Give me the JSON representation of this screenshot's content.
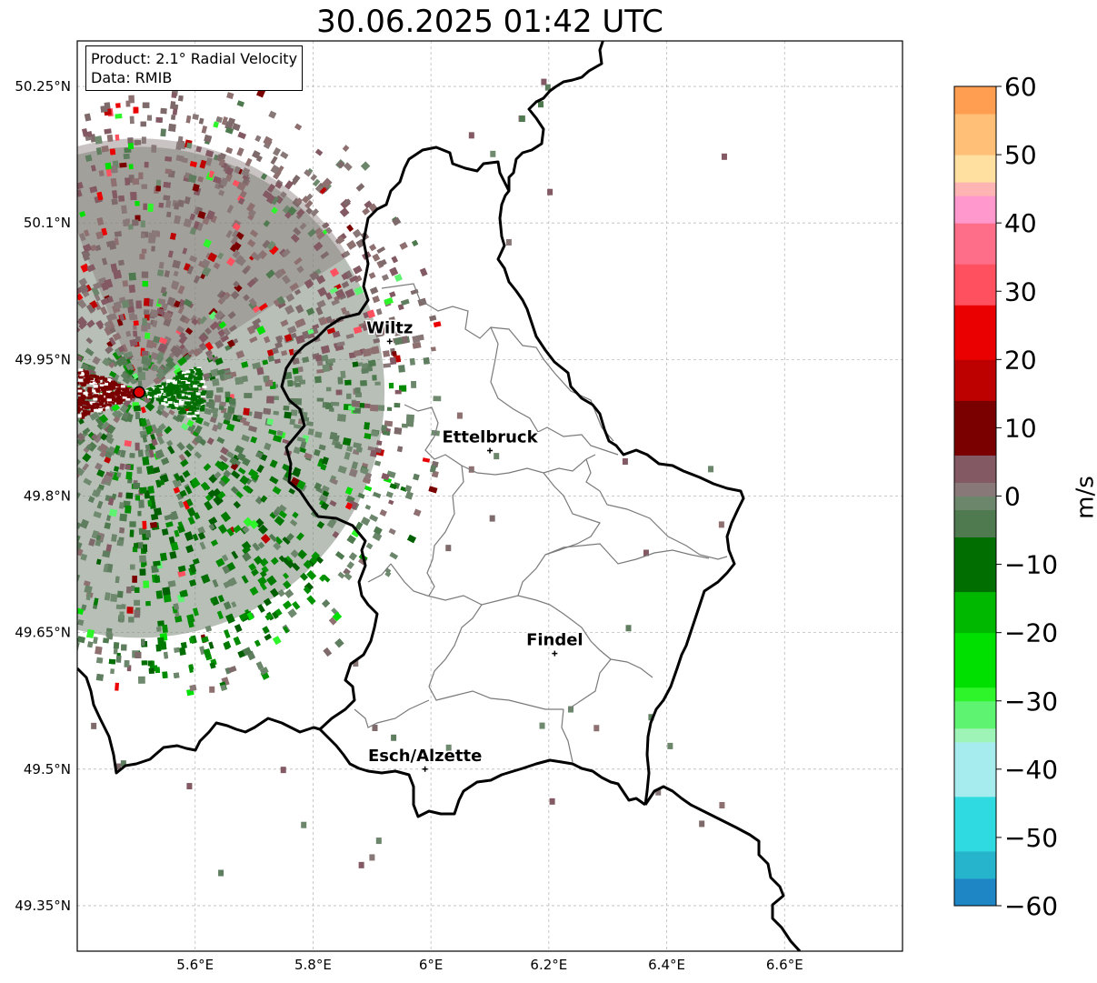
{
  "title": "30.06.2025 01:42 UTC",
  "info": {
    "product": "Product: 2.1° Radial Velocity",
    "data": "Data: RMIB"
  },
  "map": {
    "extent": {
      "lon": [
        5.4,
        6.8
      ],
      "lat": [
        49.3,
        50.3
      ]
    },
    "lat_ticks": [
      {
        "value": 50.25,
        "label": "50.25°N"
      },
      {
        "value": 50.1,
        "label": "50.1°N"
      },
      {
        "value": 49.95,
        "label": "49.95°N"
      },
      {
        "value": 49.8,
        "label": "49.8°N"
      },
      {
        "value": 49.65,
        "label": "49.65°N"
      },
      {
        "value": 49.5,
        "label": "49.5°N"
      },
      {
        "value": 49.35,
        "label": "49.35°N"
      }
    ],
    "lon_ticks": [
      {
        "value": 5.6,
        "label": "5.6°E"
      },
      {
        "value": 5.8,
        "label": "5.8°E"
      },
      {
        "value": 6.0,
        "label": "6°E"
      },
      {
        "value": 6.2,
        "label": "6.2°E"
      },
      {
        "value": 6.4,
        "label": "6.4°E"
      },
      {
        "value": 6.6,
        "label": "6.6°E"
      }
    ],
    "radar": {
      "name": "radar-site",
      "lon": 5.505,
      "lat": 49.914
    },
    "cities": [
      {
        "name": "Wiltz",
        "lon": 5.93,
        "lat": 49.97
      },
      {
        "name": "Ettelbruck",
        "lon": 6.1,
        "lat": 49.85
      },
      {
        "name": "Findel",
        "lon": 6.21,
        "lat": 49.627
      },
      {
        "name": "Esch/Alzette",
        "lon": 5.99,
        "lat": 49.5
      }
    ]
  },
  "colorbar": {
    "label": "m/s",
    "min": -60,
    "max": 60,
    "ticks": [
      {
        "value": 60,
        "label": "60"
      },
      {
        "value": 50,
        "label": "50"
      },
      {
        "value": 40,
        "label": "40"
      },
      {
        "value": 30,
        "label": "30"
      },
      {
        "value": 20,
        "label": "20"
      },
      {
        "value": 10,
        "label": "10"
      },
      {
        "value": 0,
        "label": "0"
      },
      {
        "value": -10,
        "label": "−10"
      },
      {
        "value": -20,
        "label": "−20"
      },
      {
        "value": -30,
        "label": "−30"
      },
      {
        "value": -40,
        "label": "−40"
      },
      {
        "value": -50,
        "label": "−50"
      },
      {
        "value": -60,
        "label": "−60"
      }
    ],
    "stops": [
      {
        "from": -60,
        "to": -56,
        "color": "#1f86c6"
      },
      {
        "from": -56,
        "to": -52,
        "color": "#26b3cc"
      },
      {
        "from": -52,
        "to": -44,
        "color": "#2fdbe0"
      },
      {
        "from": -44,
        "to": -36,
        "color": "#a6ecee"
      },
      {
        "from": -36,
        "to": -34,
        "color": "#9ef3b7"
      },
      {
        "from": -34,
        "to": -30,
        "color": "#5ef370"
      },
      {
        "from": -30,
        "to": -28,
        "color": "#2df52a"
      },
      {
        "from": -28,
        "to": -20,
        "color": "#00e000"
      },
      {
        "from": -20,
        "to": -14,
        "color": "#00b800"
      },
      {
        "from": -14,
        "to": -6,
        "color": "#006e00"
      },
      {
        "from": -6,
        "to": -2,
        "color": "#4f7a4f"
      },
      {
        "from": -2,
        "to": 0,
        "color": "#6b866b"
      },
      {
        "from": 0,
        "to": 2,
        "color": "#897878"
      },
      {
        "from": 2,
        "to": 6,
        "color": "#835a63"
      },
      {
        "from": 6,
        "to": 14,
        "color": "#7a0000"
      },
      {
        "from": 14,
        "to": 20,
        "color": "#bd0000"
      },
      {
        "from": 20,
        "to": 28,
        "color": "#ea0000"
      },
      {
        "from": 28,
        "to": 34,
        "color": "#ff5060"
      },
      {
        "from": 34,
        "to": 40,
        "color": "#ff6e88"
      },
      {
        "from": 40,
        "to": 44,
        "color": "#ff98cc"
      },
      {
        "from": 44,
        "to": 46,
        "color": "#ffb4b4"
      },
      {
        "from": 46,
        "to": 50,
        "color": "#ffe0a0"
      },
      {
        "from": 50,
        "to": 56,
        "color": "#ffbf76"
      },
      {
        "from": 56,
        "to": 60,
        "color": "#ff9e50"
      }
    ]
  },
  "colors": {
    "inbound_strong": "#006e00",
    "inbound_weak": "#6b866b",
    "outbound_weak": "#897878",
    "outbound_strong": "#7a0000",
    "radar_marker": "#e00000"
  }
}
